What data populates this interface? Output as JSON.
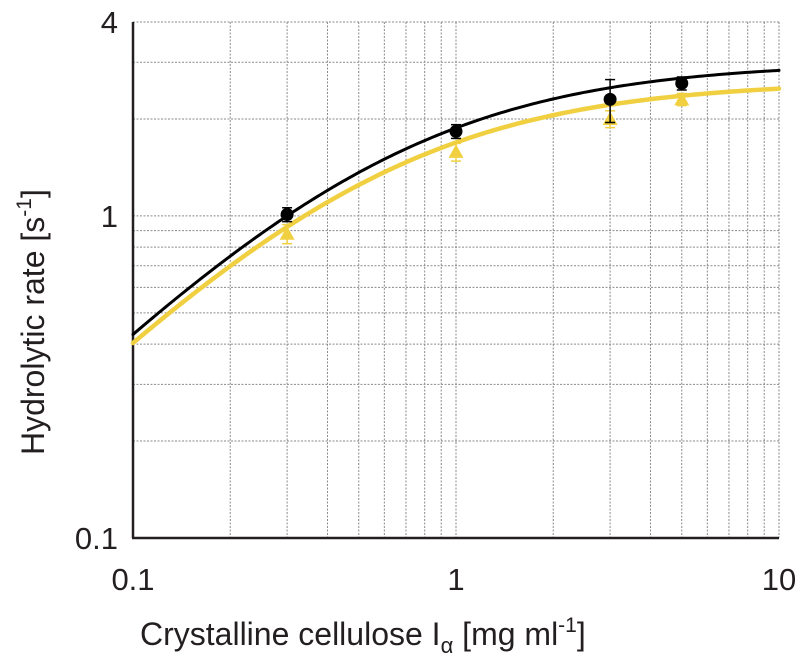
{
  "chart_data": {
    "type": "scatter",
    "x_scale": "log",
    "y_scale": "log",
    "xlim": [
      0.1,
      10
    ],
    "ylim": [
      0.1,
      4
    ],
    "grid": true,
    "x_ticks": [
      "0.1",
      "1",
      "10"
    ],
    "x_tick_values": [
      0.1,
      1,
      10
    ],
    "y_ticks": [
      "0.1",
      "1",
      "4"
    ],
    "y_tick_values": [
      0.1,
      1,
      4
    ],
    "xlabel": {
      "main": "Crystalline cellulose I",
      "sub": "α",
      "unit_open": " [mg ml",
      "unit_sup": "-1",
      "unit_close": "]"
    },
    "ylabel": {
      "main": "Hydrolytic rate [s",
      "sup": "-1",
      "close": "]"
    },
    "series": [
      {
        "color": "#000000",
        "marker": "circle",
        "points": [
          {
            "x": 0.3,
            "y": 1.01,
            "err": 0.05
          },
          {
            "x": 1.0,
            "y": 1.83,
            "err": 0.09
          },
          {
            "x": 3.0,
            "y": 2.3,
            "err": 0.35
          },
          {
            "x": 5.0,
            "y": 2.58,
            "err": 0.12
          }
        ],
        "fit": {
          "vmax": 3.0,
          "km": 0.6
        }
      },
      {
        "color": "#f0d040",
        "marker": "triangle",
        "points": [
          {
            "x": 0.3,
            "y": 0.88,
            "err": 0.06
          },
          {
            "x": 1.0,
            "y": 1.58,
            "err": 0.1
          },
          {
            "x": 3.0,
            "y": 2.0,
            "err": 0.12
          },
          {
            "x": 5.0,
            "y": 2.3,
            "err": 0.1
          }
        ],
        "fit": {
          "vmax": 2.62,
          "km": 0.55
        }
      }
    ]
  }
}
